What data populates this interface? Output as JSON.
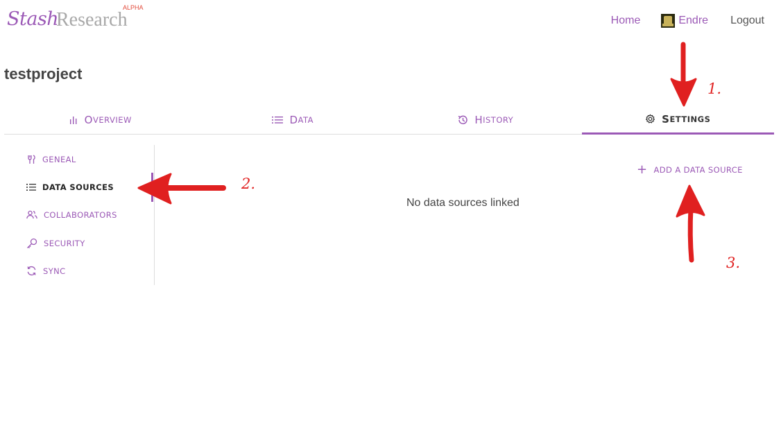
{
  "brand": {
    "name_part1": "Stash",
    "name_part2": "Research",
    "badge": "ALPHA"
  },
  "topnav": {
    "home": "Home",
    "user": "Endre",
    "logout": "Logout"
  },
  "project": {
    "title": "testproject"
  },
  "tabs": [
    {
      "first": "O",
      "rest": "verview",
      "icon": "bar-chart-icon"
    },
    {
      "first": "D",
      "rest": "ata",
      "icon": "list-icon"
    },
    {
      "first": "H",
      "rest": "istory",
      "icon": "history-icon"
    },
    {
      "first": "S",
      "rest": "ettings",
      "icon": "gear-icon",
      "active": true
    }
  ],
  "sidebar": {
    "items": [
      {
        "label": "geneal",
        "icon": "tools-icon"
      },
      {
        "label": "data sources",
        "icon": "list-icon",
        "active": true
      },
      {
        "label": "collaborators",
        "icon": "users-icon"
      },
      {
        "label": "security",
        "icon": "key-icon"
      },
      {
        "label": "sync",
        "icon": "sync-icon"
      }
    ]
  },
  "main": {
    "empty_message": "No data sources linked",
    "add_action": "add a data source"
  },
  "annotations": [
    "1.",
    "2.",
    "3."
  ],
  "colors": {
    "accent": "#9b59b6",
    "annotation": "#e02020",
    "alpha_badge": "#e24a3b"
  }
}
